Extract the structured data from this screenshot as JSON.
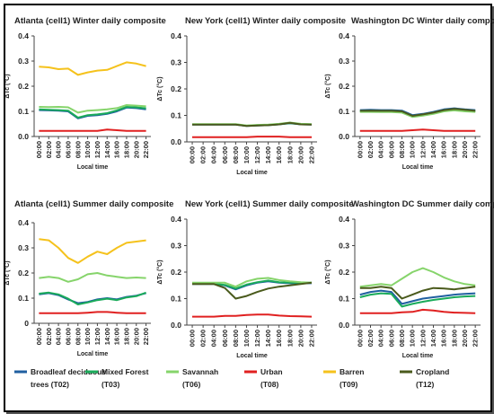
{
  "chart_data": [
    {
      "type": "line",
      "title": "Atlanta (cell1) Winter daily composite",
      "xlabel": "Local time",
      "ylabel": "ΔTc (°C)",
      "ylim": [
        0,
        0.4
      ],
      "yticks": [
        "0.0",
        "0.1",
        "0.2",
        "0.3",
        "0.4"
      ],
      "x": [
        "00:00",
        "02:00",
        "04:00",
        "06:00",
        "08:00",
        "10:00",
        "12:00",
        "14:00",
        "16:00",
        "18:00",
        "20:00",
        "22:00"
      ],
      "series": [
        {
          "name": "Broadleaf deciduous trees (T02)",
          "values": [
            0.105,
            0.104,
            0.103,
            0.1,
            0.072,
            0.082,
            0.085,
            0.09,
            0.1,
            0.115,
            0.113,
            0.108
          ]
        },
        {
          "name": "Mixed Forest (T03)",
          "values": [
            0.108,
            0.106,
            0.105,
            0.103,
            0.075,
            0.085,
            0.088,
            0.093,
            0.104,
            0.118,
            0.116,
            0.112
          ]
        },
        {
          "name": "Savannah (T06)",
          "values": [
            0.118,
            0.117,
            0.118,
            0.116,
            0.095,
            0.103,
            0.105,
            0.108,
            0.113,
            0.125,
            0.123,
            0.12
          ]
        },
        {
          "name": "Urban (T08)",
          "values": [
            0.022,
            0.022,
            0.022,
            0.022,
            0.022,
            0.022,
            0.022,
            0.028,
            0.025,
            0.022,
            0.022,
            0.022
          ]
        },
        {
          "name": "Barren (T09)",
          "values": [
            0.278,
            0.275,
            0.268,
            0.27,
            0.245,
            0.255,
            0.262,
            0.265,
            0.28,
            0.295,
            0.29,
            0.28
          ]
        }
      ]
    },
    {
      "type": "line",
      "title": "New York (cell1) Winter daily composite",
      "xlabel": "Local time",
      "ylabel": "ΔTc (°C)",
      "ylim": [
        0,
        0.4
      ],
      "yticks": [
        "0.0",
        "0.1",
        "0.2",
        "0.3",
        "0.4"
      ],
      "x": [
        "00:00",
        "02:00",
        "04:00",
        "06:00",
        "08:00",
        "10:00",
        "12:00",
        "14:00",
        "16:00",
        "18:00",
        "20:00",
        "22:00"
      ],
      "series": [
        {
          "name": "Broadleaf deciduous trees (T02)",
          "values": [
            0.065,
            0.065,
            0.065,
            0.065,
            0.065,
            0.06,
            0.062,
            0.063,
            0.066,
            0.07,
            0.066,
            0.065
          ]
        },
        {
          "name": "Mixed Forest (T03)",
          "values": [
            0.066,
            0.066,
            0.066,
            0.066,
            0.066,
            0.061,
            0.063,
            0.064,
            0.067,
            0.071,
            0.067,
            0.066
          ]
        },
        {
          "name": "Savannah (T06)",
          "values": [
            0.067,
            0.067,
            0.067,
            0.067,
            0.067,
            0.062,
            0.064,
            0.065,
            0.068,
            0.073,
            0.068,
            0.067
          ]
        },
        {
          "name": "Urban (T08)",
          "values": [
            0.018,
            0.018,
            0.018,
            0.018,
            0.018,
            0.018,
            0.02,
            0.02,
            0.02,
            0.018,
            0.018,
            0.018
          ]
        },
        {
          "name": "Cropland (T12)",
          "values": [
            0.065,
            0.065,
            0.065,
            0.065,
            0.065,
            0.06,
            0.062,
            0.063,
            0.066,
            0.072,
            0.066,
            0.065
          ]
        }
      ]
    },
    {
      "type": "line",
      "title": "Washington DC Winter daily composite",
      "xlabel": "Local time",
      "ylabel": "ΔTc (°C)",
      "ylim": [
        0,
        0.4
      ],
      "yticks": [
        "0.0",
        "0.1",
        "0.2",
        "0.3",
        "0.4"
      ],
      "x": [
        "00:00",
        "02:00",
        "04:00",
        "06:00",
        "08:00",
        "10:00",
        "12:00",
        "14:00",
        "16:00",
        "18:00",
        "20:00",
        "22:00"
      ],
      "series": [
        {
          "name": "Broadleaf deciduous trees (T02)",
          "values": [
            0.105,
            0.106,
            0.105,
            0.105,
            0.103,
            0.085,
            0.09,
            0.098,
            0.108,
            0.112,
            0.108,
            0.105
          ]
        },
        {
          "name": "Mixed Forest (T03)",
          "values": [
            0.1,
            0.101,
            0.1,
            0.1,
            0.098,
            0.08,
            0.086,
            0.093,
            0.103,
            0.108,
            0.104,
            0.1
          ]
        },
        {
          "name": "Savannah (T06)",
          "values": [
            0.098,
            0.098,
            0.097,
            0.097,
            0.095,
            0.078,
            0.083,
            0.09,
            0.1,
            0.104,
            0.1,
            0.098
          ]
        },
        {
          "name": "Urban (T08)",
          "values": [
            0.022,
            0.022,
            0.022,
            0.022,
            0.022,
            0.025,
            0.028,
            0.025,
            0.022,
            0.022,
            0.022,
            0.022
          ]
        },
        {
          "name": "Cropland (T12)",
          "values": [
            0.102,
            0.103,
            0.102,
            0.102,
            0.1,
            0.082,
            0.088,
            0.095,
            0.105,
            0.11,
            0.106,
            0.102
          ]
        }
      ]
    },
    {
      "type": "line",
      "title": "Atlanta (cell1) Summer daily composite",
      "xlabel": "Local time",
      "ylabel": "ΔTc (°C)",
      "ylim": [
        0,
        0.4
      ],
      "yticks": [
        "0",
        "0.1",
        "0.2",
        "0.3",
        "0.4"
      ],
      "x": [
        "00:00",
        "02:00",
        "04:00",
        "06:00",
        "08:00",
        "10:00",
        "12:00",
        "14:00",
        "16:00",
        "18:00",
        "20:00",
        "22:00"
      ],
      "series": [
        {
          "name": "Broadleaf deciduous trees (T02)",
          "values": [
            0.115,
            0.12,
            0.112,
            0.095,
            0.08,
            0.085,
            0.095,
            0.1,
            0.095,
            0.105,
            0.11,
            0.12
          ]
        },
        {
          "name": "Mixed Forest (T03)",
          "values": [
            0.118,
            0.122,
            0.115,
            0.098,
            0.075,
            0.083,
            0.092,
            0.098,
            0.092,
            0.103,
            0.108,
            0.122
          ]
        },
        {
          "name": "Savannah (T06)",
          "values": [
            0.18,
            0.185,
            0.18,
            0.165,
            0.175,
            0.195,
            0.2,
            0.19,
            0.185,
            0.18,
            0.182,
            0.18
          ]
        },
        {
          "name": "Urban (T08)",
          "values": [
            0.04,
            0.04,
            0.04,
            0.04,
            0.04,
            0.042,
            0.045,
            0.045,
            0.042,
            0.04,
            0.04,
            0.04
          ]
        },
        {
          "name": "Barren (T09)",
          "values": [
            0.335,
            0.33,
            0.3,
            0.26,
            0.24,
            0.265,
            0.285,
            0.275,
            0.3,
            0.32,
            0.325,
            0.33
          ]
        }
      ]
    },
    {
      "type": "line",
      "title": "New York (cell1) Summer daily composite",
      "xlabel": "Local time",
      "ylabel": "ΔTc (°C)",
      "ylim": [
        0,
        0.4
      ],
      "yticks": [
        "0.0",
        "0.1",
        "0.2",
        "0.3",
        "0.4"
      ],
      "x": [
        "00:00",
        "02:00",
        "04:00",
        "06:00",
        "08:00",
        "10:00",
        "12:00",
        "14:00",
        "16:00",
        "18:00",
        "20:00",
        "22:00"
      ],
      "series": [
        {
          "name": "Broadleaf deciduous trees (T02)",
          "values": [
            0.155,
            0.155,
            0.155,
            0.15,
            0.135,
            0.15,
            0.16,
            0.165,
            0.16,
            0.158,
            0.158,
            0.158
          ]
        },
        {
          "name": "Mixed Forest (T03)",
          "values": [
            0.157,
            0.157,
            0.157,
            0.152,
            0.138,
            0.153,
            0.162,
            0.168,
            0.162,
            0.16,
            0.16,
            0.16
          ]
        },
        {
          "name": "Savannah (T06)",
          "values": [
            0.16,
            0.16,
            0.16,
            0.16,
            0.145,
            0.165,
            0.175,
            0.178,
            0.17,
            0.165,
            0.162,
            0.16
          ]
        },
        {
          "name": "Urban (T08)",
          "values": [
            0.032,
            0.032,
            0.032,
            0.035,
            0.035,
            0.038,
            0.04,
            0.04,
            0.036,
            0.034,
            0.033,
            0.032
          ]
        },
        {
          "name": "Cropland (T12)",
          "values": [
            0.155,
            0.155,
            0.155,
            0.14,
            0.1,
            0.11,
            0.125,
            0.138,
            0.145,
            0.15,
            0.155,
            0.16
          ]
        }
      ]
    },
    {
      "type": "line",
      "title": "Washington DC Summer daily composite",
      "xlabel": "Local time",
      "ylabel": "ΔTc (°C)",
      "ylim": [
        0,
        0.4
      ],
      "yticks": [
        "0.0",
        "0.1",
        "0.2",
        "0.3",
        "0.4"
      ],
      "x": [
        "00:00",
        "02:00",
        "04:00",
        "06:00",
        "08:00",
        "10:00",
        "12:00",
        "14:00",
        "16:00",
        "18:00",
        "20:00",
        "22:00"
      ],
      "series": [
        {
          "name": "Broadleaf deciduous trees (T02)",
          "values": [
            0.115,
            0.125,
            0.13,
            0.125,
            0.08,
            0.09,
            0.1,
            0.105,
            0.11,
            0.115,
            0.118,
            0.12
          ]
        },
        {
          "name": "Mixed Forest (T03)",
          "values": [
            0.105,
            0.115,
            0.12,
            0.118,
            0.07,
            0.08,
            0.088,
            0.095,
            0.1,
            0.105,
            0.108,
            0.11
          ]
        },
        {
          "name": "Savannah (T06)",
          "values": [
            0.145,
            0.15,
            0.155,
            0.15,
            0.175,
            0.2,
            0.215,
            0.2,
            0.18,
            0.165,
            0.155,
            0.15
          ]
        },
        {
          "name": "Urban (T08)",
          "values": [
            0.045,
            0.045,
            0.045,
            0.045,
            0.048,
            0.05,
            0.058,
            0.055,
            0.05,
            0.047,
            0.046,
            0.045
          ]
        },
        {
          "name": "Cropland (T12)",
          "values": [
            0.14,
            0.14,
            0.145,
            0.14,
            0.1,
            0.115,
            0.13,
            0.14,
            0.138,
            0.135,
            0.14,
            0.145
          ]
        }
      ]
    }
  ],
  "legend": [
    {
      "label": "Broadleaf deciduous trees (T02)",
      "lines": [
        "Broadleaf deciduous",
        "trees (T02)"
      ],
      "color": "#1f5fa0"
    },
    {
      "label": "Mixed Forest (T03)",
      "lines": [
        "Mixed Forest",
        "(T03)"
      ],
      "color": "#1aab5a"
    },
    {
      "label": "Savannah (T06)",
      "lines": [
        "Savannah",
        "(T06)"
      ],
      "color": "#86d46b"
    },
    {
      "label": "Urban (T08)",
      "lines": [
        "Urban",
        "(T08)"
      ],
      "color": "#e02020"
    },
    {
      "label": "Barren (T09)",
      "lines": [
        "Barren",
        "(T09)"
      ],
      "color": "#f5c21c"
    },
    {
      "label": "Cropland (T12)",
      "lines": [
        "Cropland",
        "(T12)"
      ],
      "color": "#4a5a1c"
    }
  ],
  "colors": {
    "Broadleaf deciduous trees (T02)": "#1f5fa0",
    "Mixed Forest (T03)": "#1aab5a",
    "Savannah (T06)": "#86d46b",
    "Urban (T08)": "#e02020",
    "Barren (T09)": "#f5c21c",
    "Cropland (T12)": "#4a5a1c"
  }
}
